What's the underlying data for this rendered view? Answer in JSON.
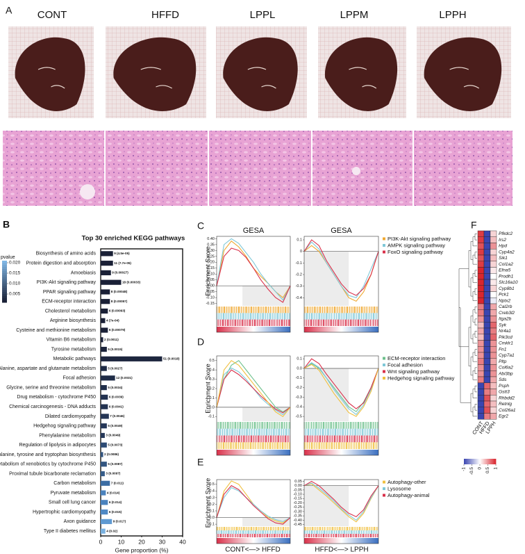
{
  "panels": [
    "A",
    "B",
    "C",
    "D",
    "E",
    "F"
  ],
  "photos": {
    "labels": [
      "CONT",
      "HFFD",
      "LPPL",
      "LPPM",
      "LPPH"
    ]
  },
  "chart_data": [
    {
      "type": "bar",
      "orientation": "horizontal",
      "title": "Top 30 enriched KEGG pathways",
      "categories": [
        "Biosynthesis of amino acids",
        "Protein digestion and absorption",
        "Amoebiasis",
        "PI3K-Akt signaling pathway",
        "PPAR signaling pathway",
        "ECM-receptor interaction",
        "Cholesterol metabolism",
        "Arginine biosynthesis",
        "Cysteine and methionine metabolism",
        "Vitamin B6 metabolism",
        "Tyrosine metabolism",
        "Metabolic pathways",
        "Alanine, aspartate and glutamate metabolism",
        "Focal adhesion",
        "Glycine, serine and threonine metabolism",
        "Drug metabolism - cytochrome P450",
        "Chemical carcinogenesis - DNA adducts",
        "Dilated cardiomyopathy",
        "Hedgehog signaling pathway",
        "Phenylalanine metabolism",
        "Regulation of lipolysis in adipocytes",
        "Phenylalanine, tyrosine and tryptophan biosynthesis",
        "Metabolism of xenobiotics by cytochrome P450",
        "Proximal tubule bicarbonate reclamation",
        "Carbon metabolism",
        "Pyruvate metabolism",
        "Small cell lung cancer",
        "Hypertrophic cardiomyopathy",
        "Axon guidance",
        "Type II diabetes mellitus"
      ],
      "values": [
        6,
        6,
        5,
        10,
        4.5,
        4.5,
        3.5,
        2.2,
        3.5,
        1.2,
        3,
        30,
        3,
        7,
        3,
        3.5,
        3.5,
        4,
        3,
        2,
        3,
        1.2,
        3,
        2,
        4.5,
        2.5,
        3.5,
        3.5,
        5.5,
        2.3
      ],
      "bar_labels": [
        "9 (4.5e-05)",
        "11 (7.7e-05)",
        "9 (0.00027)",
        "18 (0.00033)",
        "8 (0.00048)",
        "8 (0.00057)",
        "6 (0.00063)",
        "4 (7e-04)",
        "6 (0.00079)",
        "2 (0.0011)",
        "5 (0.0015)",
        "51 (0.0018)",
        "5 (0.0027)",
        "12 (0.0031)",
        "5 (0.0034)",
        "6 (0.0039)",
        "6 (0.0041)",
        "7 (0.0046)",
        "5 (0.0049)",
        "3 (0.0049)",
        "5 (0.0073)",
        "2 (0.0086)",
        "5 (0.0087)",
        "3 (0.0097)",
        "7 (0.011)",
        "4 (0.014)",
        "6 (0.014)",
        "6 (0.015)",
        "9 (0.017)",
        "4 (0.02)"
      ],
      "colors": [
        "#1a2036",
        "#1a2036",
        "#1a2036",
        "#1a2036",
        "#1a2036",
        "#1a2036",
        "#1a2036",
        "#1a2036",
        "#1a2036",
        "#1b2238",
        "#1c243b",
        "#1d263e",
        "#1e2a44",
        "#1f2c47",
        "#202e4a",
        "#22314f",
        "#223250",
        "#243554",
        "#253758",
        "#253758",
        "#2c4a73",
        "#32547f",
        "#325580",
        "#365d8a",
        "#3c6da3",
        "#4a82bd",
        "#4a82bd",
        "#4f89c4",
        "#5f9ad2",
        "#79b1e0"
      ],
      "xlim": [
        0,
        40
      ],
      "xticks": [
        0,
        10,
        20,
        30,
        40
      ],
      "x_label": "Gene proportion (%)",
      "colorbar_label": "pvalue",
      "colorbar_lim": [
        0.002,
        0.021
      ],
      "colorbar_colors": [
        "#1a2036",
        "#7fb6e4"
      ],
      "colorbar_ticks": [
        {
          "value": 0.02,
          "label": "0.020"
        },
        0.015,
        {
          "value": 0.01,
          "label": "0.010"
        },
        0.005
      ]
    },
    {
      "type": "line",
      "title": "GESA",
      "y_label": "Enrichment Sxore",
      "ylim": [
        -0.17,
        0.42
      ],
      "yticks": [
        {
          "value": 0.4,
          "label": "0.40"
        },
        0.35,
        {
          "value": 0.3,
          "label": "0.30"
        },
        0.25,
        {
          "value": 0.2,
          "label": "0.20"
        },
        0.15,
        {
          "value": 0.1,
          "label": "0.10"
        },
        0.05,
        {
          "value": 0,
          "label": "0.00"
        },
        -0.05,
        {
          "value": -0.1,
          "label": "-0.10"
        },
        -0.15
      ],
      "series": [
        {
          "name": "PI3K-Akt signaling pathway",
          "color": "#f0a830",
          "values": [
            0,
            0.3,
            0.38,
            0.33,
            0.25,
            0.15,
            0.08,
            0.02,
            -0.05,
            -0.1,
            0
          ]
        },
        {
          "name": "AMPK signaling pathway",
          "color": "#7fc8d8",
          "values": [
            0,
            0.35,
            0.4,
            0.36,
            0.28,
            0.2,
            0.1,
            0.02,
            -0.05,
            -0.12,
            0
          ]
        },
        {
          "name": "FoxO signaling pathway",
          "color": "#d9304a",
          "values": [
            0,
            0.25,
            0.32,
            0.3,
            0.24,
            0.15,
            0.05,
            -0.03,
            -0.1,
            -0.14,
            0
          ]
        }
      ]
    },
    {
      "type": "line",
      "title": "GESA",
      "ylim": [
        -0.47,
        0.13
      ],
      "yticks": [
        0.1,
        0,
        -0.1,
        -0.2,
        -0.3,
        -0.4
      ],
      "series": [
        {
          "color": "#f0a830",
          "values": [
            0,
            0.05,
            0,
            -0.1,
            -0.2,
            -0.3,
            -0.4,
            -0.43,
            -0.35,
            -0.2,
            0
          ]
        },
        {
          "color": "#7fc8d8",
          "values": [
            0,
            0.08,
            0.02,
            -0.1,
            -0.2,
            -0.3,
            -0.38,
            -0.4,
            -0.3,
            -0.15,
            0
          ]
        },
        {
          "color": "#d9304a",
          "values": [
            0,
            0.1,
            0.05,
            -0.08,
            -0.18,
            -0.28,
            -0.35,
            -0.38,
            -0.32,
            -0.2,
            0
          ]
        }
      ]
    },
    {
      "type": "line",
      "y_label": "Enrichment Sxore",
      "ylim": [
        -0.15,
        0.55
      ],
      "yticks": [
        0.5,
        0.4,
        0.3,
        0.2,
        0.1,
        {
          "value": 0,
          "label": "0.0"
        },
        -0.1
      ],
      "series": [
        {
          "name": "ECM-receptor interaction",
          "color": "#6cc08b",
          "values": [
            0,
            0.3,
            0.45,
            0.5,
            0.4,
            0.3,
            0.2,
            0.1,
            0,
            -0.05,
            0
          ]
        },
        {
          "name": "Focal adhesion",
          "color": "#7fc8d8",
          "values": [
            0,
            0.35,
            0.42,
            0.38,
            0.3,
            0.2,
            0.1,
            0.03,
            -0.03,
            -0.08,
            0
          ]
        },
        {
          "name": "Wnt signaling pathway",
          "color": "#d9304a",
          "values": [
            0,
            0.3,
            0.4,
            0.35,
            0.28,
            0.2,
            0.12,
            0.05,
            -0.02,
            -0.06,
            0
          ]
        },
        {
          "name": "Hedgehog signaling pathway",
          "color": "#f0c040",
          "values": [
            0,
            0.4,
            0.5,
            0.45,
            0.35,
            0.25,
            0.15,
            0.05,
            -0.05,
            -0.1,
            0
          ]
        }
      ]
    },
    {
      "type": "line",
      "ylim": [
        -0.55,
        0.13
      ],
      "yticks": [
        0.1,
        {
          "value": 0,
          "label": "0.0"
        },
        -0.1,
        -0.2,
        -0.3,
        -0.4,
        -0.5
      ],
      "series": [
        {
          "color": "#6cc08b",
          "values": [
            0,
            0.05,
            0,
            -0.1,
            -0.2,
            -0.3,
            -0.4,
            -0.45,
            -0.35,
            -0.2,
            0
          ]
        },
        {
          "color": "#7fc8d8",
          "values": [
            0,
            0.06,
            0.01,
            -0.1,
            -0.22,
            -0.32,
            -0.42,
            -0.48,
            -0.38,
            -0.22,
            0
          ]
        },
        {
          "color": "#d9304a",
          "values": [
            0,
            0.1,
            0.05,
            -0.06,
            -0.16,
            -0.26,
            -0.36,
            -0.42,
            -0.36,
            -0.2,
            0
          ]
        },
        {
          "color": "#f0c040",
          "values": [
            0,
            0.04,
            -0.02,
            -0.14,
            -0.26,
            -0.36,
            -0.46,
            -0.5,
            -0.4,
            -0.24,
            0
          ]
        }
      ]
    },
    {
      "type": "line",
      "y_label": "Enrichment Sxore",
      "ylim": [
        -0.13,
        0.57
      ],
      "yticks": [
        0.5,
        0.4,
        0.3,
        0.2,
        0.1,
        {
          "value": 0,
          "label": "0.0"
        },
        -0.1
      ],
      "series": [
        {
          "name": "Autophagy-other",
          "color": "#f0c040",
          "values": [
            0,
            0.4,
            0.55,
            0.5,
            0.35,
            0.2,
            0.1,
            0,
            -0.05,
            -0.08,
            0
          ]
        },
        {
          "name": "Lysosome",
          "color": "#7fc8d8",
          "values": [
            0,
            0.3,
            0.45,
            0.4,
            0.3,
            0.2,
            0.1,
            0.02,
            -0.03,
            -0.06,
            0
          ]
        },
        {
          "name": "Autophagy-animal",
          "color": "#d9304a",
          "values": [
            0,
            0.35,
            0.48,
            0.42,
            0.3,
            0.18,
            0.08,
            -0.02,
            -0.08,
            -0.1,
            0
          ]
        }
      ]
    },
    {
      "type": "line",
      "ylim": [
        -0.47,
        0.07
      ],
      "yticks": [
        0.05,
        {
          "value": 0,
          "label": "0.00"
        },
        -0.05,
        {
          "value": -0.1,
          "label": "-0.10"
        },
        -0.15,
        {
          "value": -0.2,
          "label": "-0.20"
        },
        -0.25,
        {
          "value": -0.3,
          "label": "-0.30"
        },
        -0.35,
        {
          "value": -0.4,
          "label": "-0.40"
        },
        -0.45
      ],
      "series": [
        {
          "color": "#f0c040",
          "values": [
            0,
            0.02,
            -0.05,
            -0.12,
            -0.2,
            -0.28,
            -0.36,
            -0.42,
            -0.32,
            -0.15,
            0
          ]
        },
        {
          "color": "#7fc8d8",
          "values": [
            0,
            0.03,
            -0.03,
            -0.1,
            -0.18,
            -0.27,
            -0.34,
            -0.4,
            -0.3,
            -0.14,
            0
          ]
        },
        {
          "color": "#d9304a",
          "values": [
            0,
            0.05,
            0,
            -0.08,
            -0.16,
            -0.25,
            -0.32,
            -0.36,
            -0.28,
            -0.12,
            0
          ]
        }
      ]
    },
    {
      "type": "heatmap",
      "rows": [
        "Pfkdc2",
        "Irs2",
        "Hpd",
        "Cyp4a2",
        "Sik1",
        "Col1a2",
        "Efna5",
        "Prodh1",
        "Slc16a10",
        "Cyp8b1",
        "Pck1",
        "Nptx2",
        "Cal2rb",
        "Creb3l2",
        "Itga2b",
        "Syk",
        "Nr4a1",
        "Pik3cd",
        "Cmklr1",
        "Fn1",
        "Cyp7a1",
        "Pltp",
        "Col6a2",
        "Abi3bp",
        "Sds",
        "Psph",
        "Gstt3",
        "Rhbdd2",
        "Retnlg",
        "Col26a1",
        "Egr2"
      ],
      "columns": [
        "CONT",
        "HFFD",
        "LPPH"
      ],
      "values": [
        [
          0.9,
          -1,
          0.2
        ],
        [
          0.9,
          -1,
          0.3
        ],
        [
          0.8,
          -1,
          0.5
        ],
        [
          0.9,
          -1,
          0.2
        ],
        [
          0.8,
          -1,
          0.3
        ],
        [
          0.9,
          -1,
          0.2
        ],
        [
          1,
          -1,
          0.1
        ],
        [
          1,
          -1,
          0
        ],
        [
          1,
          -1,
          0.1
        ],
        [
          1,
          -1,
          0.2
        ],
        [
          1,
          -1,
          0
        ],
        [
          1,
          -1,
          -0.1
        ],
        [
          0.6,
          -1,
          0.4
        ],
        [
          0.6,
          -1,
          0.4
        ],
        [
          0.5,
          -1,
          0.5
        ],
        [
          0.3,
          -1,
          0.7
        ],
        [
          0.4,
          -1,
          0.6
        ],
        [
          0.3,
          -1,
          0.7
        ],
        [
          0.5,
          -1,
          0.5
        ],
        [
          0.5,
          -1,
          0.5
        ],
        [
          0.5,
          -1,
          0.5
        ],
        [
          0.6,
          -1,
          0.4
        ],
        [
          0.5,
          -1,
          0.5
        ],
        [
          0.5,
          -1,
          0.5
        ],
        [
          0.6,
          -1,
          0.4
        ],
        [
          -1,
          0.7,
          0.3
        ],
        [
          -1,
          0.6,
          0.4
        ],
        [
          -1,
          0.8,
          0.2
        ],
        [
          -1,
          0.7,
          0.3
        ],
        [
          -1,
          0.8,
          0.2
        ],
        [
          -1,
          0.6,
          0.4
        ]
      ],
      "clim": [
        -1,
        1
      ],
      "colors": [
        "#3a45b0",
        "#ffffff",
        "#d9262e"
      ],
      "colorbar_ticks": [
        -1,
        -0.5,
        0,
        0.5,
        1
      ]
    }
  ],
  "x_labels": [
    "CONT<—> HFFD",
    "HFFD<—> LPPH"
  ]
}
